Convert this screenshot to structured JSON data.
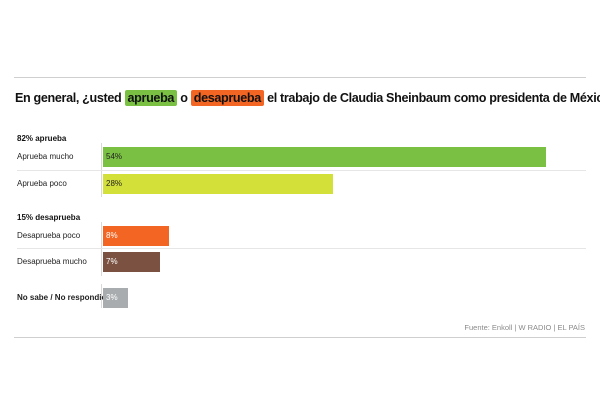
{
  "title": {
    "before": "En general, ¿usted ",
    "hl1": "aprueba",
    "mid": " o ",
    "hl2": "desaprueba",
    "after": " el trabajo de Claudia Sheinbaum como presidenta de México?"
  },
  "source": "Fuente: Enkoll | W RADIO | EL PAÍS",
  "chart_data": {
    "type": "bar",
    "orientation": "horizontal",
    "title": "En general, ¿usted aprueba o desaprueba el trabajo de Claudia Sheinbaum como presidenta de México?",
    "groups": [
      {
        "label": "82% aprueba",
        "categories": [
          "Aprueba mucho",
          "Aprueba poco"
        ]
      },
      {
        "label": "15% desaprueba",
        "categories": [
          "Desaprueba poco",
          "Desaprueba mucho"
        ]
      }
    ],
    "categories": [
      "Aprueba mucho",
      "Aprueba poco",
      "Desaprueba poco",
      "Desaprueba mucho",
      "No sabe / No respondió"
    ],
    "values": [
      54,
      28,
      8,
      7,
      3
    ],
    "value_labels": [
      "54%",
      "28%",
      "8%",
      "7%",
      "3%"
    ],
    "colors": [
      "#7ac143",
      "#d4e03a",
      "#f26522",
      "#7b5141",
      "#a8acae"
    ],
    "xlim": [
      0,
      54
    ],
    "unit": "%"
  }
}
